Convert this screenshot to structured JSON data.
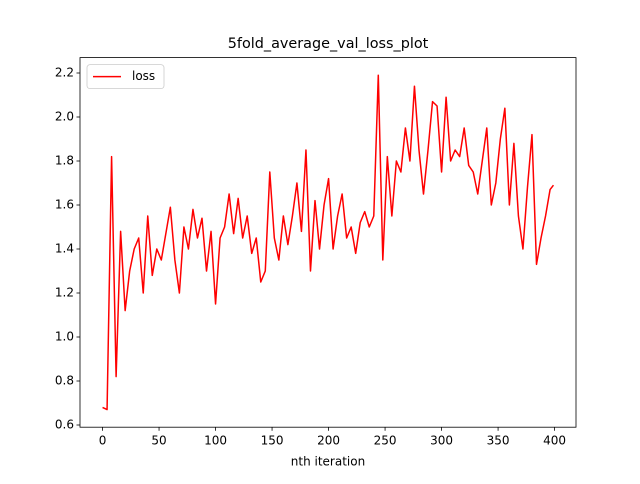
{
  "chart_data": {
    "type": "line",
    "title": "5fold_average_val_loss_plot",
    "x_label": "nth iteration",
    "x": [
      0,
      4,
      8,
      12,
      16,
      20,
      24,
      28,
      32,
      36,
      40,
      44,
      48,
      52,
      56,
      60,
      64,
      68,
      72,
      76,
      80,
      84,
      88,
      92,
      96,
      100,
      104,
      108,
      112,
      116,
      120,
      124,
      128,
      132,
      136,
      140,
      144,
      148,
      152,
      156,
      160,
      164,
      168,
      172,
      176,
      180,
      184,
      188,
      192,
      196,
      200,
      204,
      208,
      212,
      216,
      220,
      224,
      228,
      232,
      236,
      240,
      244,
      248,
      252,
      256,
      260,
      264,
      268,
      272,
      276,
      280,
      284,
      288,
      292,
      296,
      300,
      304,
      308,
      312,
      316,
      320,
      324,
      328,
      332,
      336,
      340,
      344,
      348,
      352,
      356,
      360,
      364,
      368,
      372,
      376,
      380,
      384,
      388,
      392,
      396,
      399
    ],
    "series": [
      {
        "name": "loss",
        "color": "#ff0000",
        "values": [
          0.68,
          0.67,
          1.82,
          0.82,
          1.48,
          1.12,
          1.3,
          1.4,
          1.45,
          1.2,
          1.55,
          1.28,
          1.4,
          1.35,
          1.47,
          1.59,
          1.35,
          1.2,
          1.5,
          1.4,
          1.58,
          1.45,
          1.54,
          1.3,
          1.48,
          1.15,
          1.45,
          1.5,
          1.65,
          1.47,
          1.63,
          1.45,
          1.55,
          1.38,
          1.45,
          1.25,
          1.3,
          1.75,
          1.45,
          1.35,
          1.55,
          1.42,
          1.55,
          1.7,
          1.48,
          1.85,
          1.3,
          1.62,
          1.4,
          1.6,
          1.72,
          1.4,
          1.55,
          1.65,
          1.45,
          1.5,
          1.38,
          1.52,
          1.57,
          1.5,
          1.55,
          2.19,
          1.35,
          1.82,
          1.55,
          1.8,
          1.75,
          1.95,
          1.8,
          2.14,
          1.85,
          1.65,
          1.85,
          2.07,
          2.05,
          1.75,
          2.09,
          1.8,
          1.85,
          1.82,
          1.95,
          1.78,
          1.75,
          1.65,
          1.8,
          1.95,
          1.6,
          1.7,
          1.9,
          2.04,
          1.6,
          1.88,
          1.55,
          1.4,
          1.68,
          1.92,
          1.33,
          1.45,
          1.55,
          1.67,
          1.69
        ]
      }
    ],
    "xlim": [
      -19.95,
      418.95
    ],
    "ylim": [
      0.59,
      2.27
    ],
    "xticks": [
      0,
      50,
      100,
      150,
      200,
      250,
      300,
      350,
      400
    ],
    "yticks": [
      {
        "value": 0.6,
        "label": "0.6"
      },
      {
        "value": 0.8,
        "label": "0.8"
      },
      {
        "value": 1.0,
        "label": "1.0"
      },
      {
        "value": 1.2,
        "label": "1.2"
      },
      {
        "value": 1.4,
        "label": "1.4"
      },
      {
        "value": 1.6,
        "label": "1.6"
      },
      {
        "value": 1.8,
        "label": "1.8"
      },
      {
        "value": 2.0,
        "label": "2.0"
      },
      {
        "value": 2.2,
        "label": "2.2"
      }
    ],
    "legend": "upper left"
  }
}
